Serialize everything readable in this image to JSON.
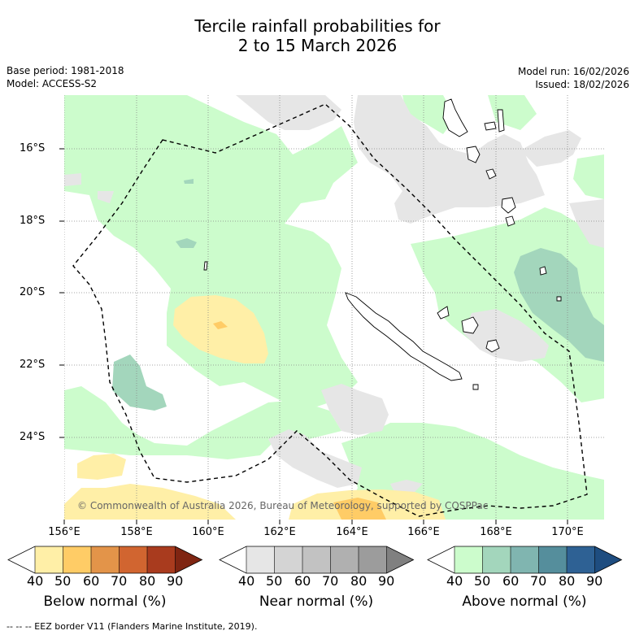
{
  "title_line1": "Tercile rainfall probabilities for",
  "title_line2": "2 to 15 March 2026",
  "base_period": "Base period: 1981-2018",
  "model": "Model: ACCESS-S2",
  "model_run": "Model run: 16/02/2026",
  "issued": "Issued: 18/02/2026",
  "map": {
    "copyright": "© Commonwealth of Australia 2026, Bureau of Meteorology, supported by COSPPac",
    "lat_labels": [
      "16°S",
      "18°S",
      "20°S",
      "22°S",
      "24°S"
    ],
    "lon_labels": [
      "156°E",
      "158°E",
      "160°E",
      "162°E",
      "164°E",
      "166°E",
      "168°E",
      "170°E"
    ],
    "eez_border": "dashed black line",
    "land": "New Caledonia, Loyalty Islands, Vanuatu (outlined)"
  },
  "legend": {
    "below": {
      "title": "Below normal (%)",
      "ticks": [
        "40",
        "50",
        "60",
        "70",
        "80",
        "90"
      ],
      "colors": [
        "#ffffff",
        "#ffefa7",
        "#ffcc66",
        "#e39449",
        "#d16530",
        "#a93b1e",
        "#7f2512"
      ]
    },
    "near": {
      "title": "Near normal (%)",
      "ticks": [
        "40",
        "50",
        "60",
        "70",
        "80",
        "90"
      ],
      "colors": [
        "#ffffff",
        "#e6e6e6",
        "#d4d4d4",
        "#c2c2c2",
        "#b0b0b0",
        "#9c9c9c",
        "#808080"
      ]
    },
    "above": {
      "title": "Above normal (%)",
      "ticks": [
        "40",
        "50",
        "60",
        "70",
        "80",
        "90"
      ],
      "colors": [
        "#ffffff",
        "#ccfccc",
        "#a3d6bc",
        "#80b5b0",
        "#558e9c",
        "#2e6194",
        "#1e4d80"
      ]
    }
  },
  "footer": "--  --  -- EEZ border V11 (Flanders Marine Institute, 2019)."
}
